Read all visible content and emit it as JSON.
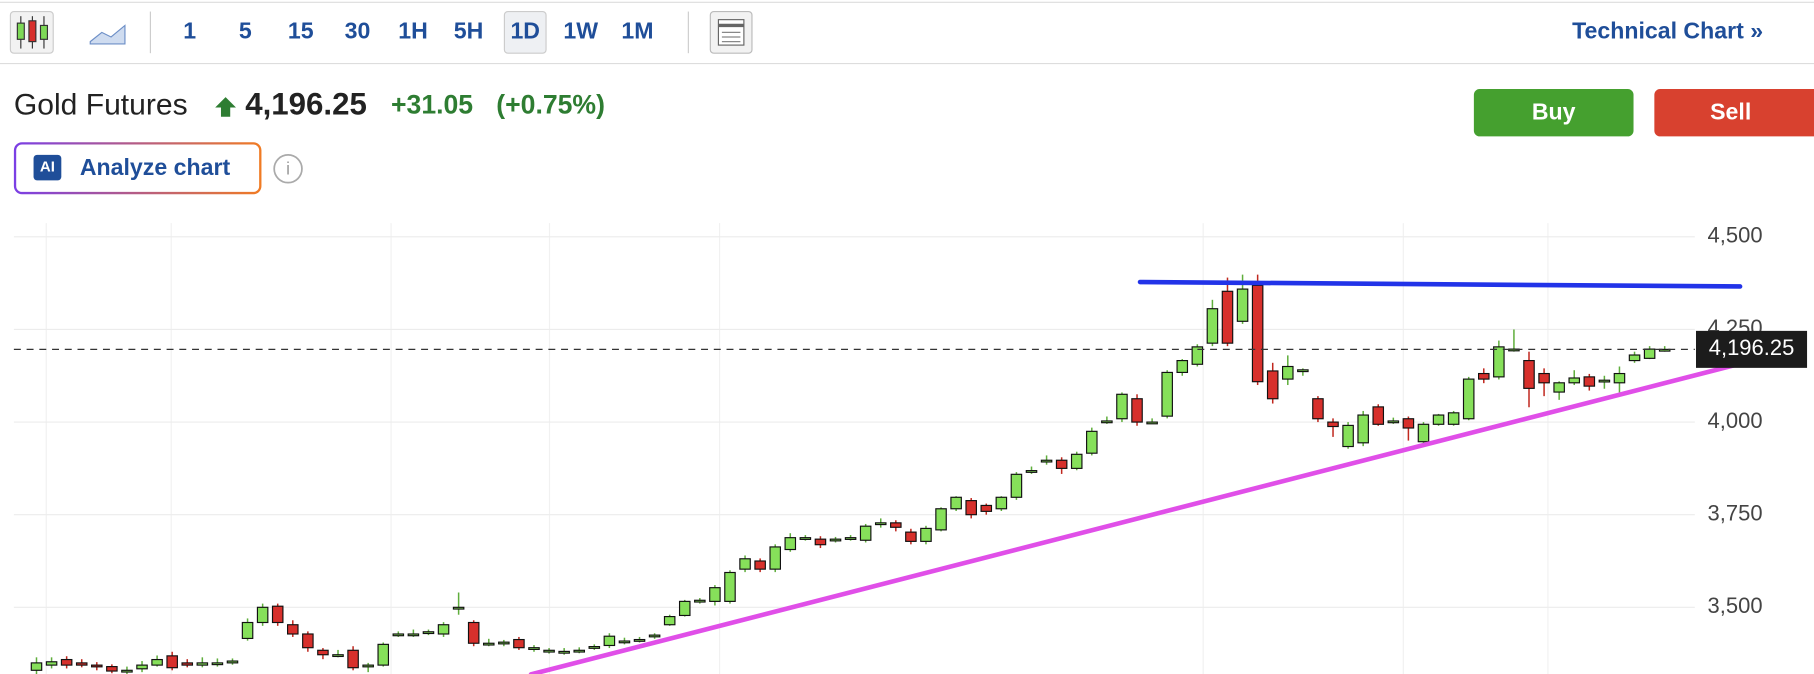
{
  "toolbar": {
    "intervals": [
      "1",
      "5",
      "15",
      "30",
      "1H",
      "5H",
      "1D",
      "1W",
      "1M"
    ],
    "selected_interval": "1D",
    "link": "Technical Chart »"
  },
  "header": {
    "name": "Gold Futures",
    "price": "4,196.25",
    "change": "+31.05",
    "change_percent": "(+0.75%)",
    "buy": "Buy",
    "sell": "Sell",
    "analyze": "Analyze chart",
    "ai_badge": "AI",
    "info": "i"
  },
  "chart_data": {
    "type": "candlestick",
    "up_color": "#86e05a",
    "down_color": "#d7302c",
    "open": [
      3330,
      3344,
      3359,
      3350,
      3344,
      3340,
      3328,
      3334,
      3344,
      3369,
      3350,
      3344,
      3350,
      3350,
      3416,
      3459,
      3503,
      3453,
      3428,
      3384,
      3372,
      3384,
      3344,
      3344,
      3428,
      3428,
      3434,
      3428,
      3500,
      3459,
      3403,
      3403,
      3413,
      3391,
      3384,
      3381,
      3384,
      3394,
      3397,
      3409,
      3413,
      3422,
      3453,
      3478,
      3516,
      3516,
      3516,
      3603,
      3625,
      3603,
      3656,
      3688,
      3684,
      3684,
      3688,
      3681,
      3728,
      3728,
      3703,
      3678,
      3709,
      3766,
      3788,
      3775,
      3766,
      3797,
      3869,
      3897,
      3897,
      3875,
      3916,
      4003,
      4009,
      4063,
      4000,
      4016,
      4134,
      4156,
      4213,
      4353,
      4272,
      4369,
      4138,
      4116,
      4141,
      4063,
      4000,
      3934,
      3944,
      4041,
      4003,
      4009,
      3947,
      3994,
      3994,
      4009,
      4131,
      4122,
      4197,
      4166,
      4131,
      4081,
      4106,
      4122,
      4113,
      4106,
      4166,
      4172,
      4196.25
    ],
    "high": [
      3365,
      3365,
      3368,
      3360,
      3352,
      3346,
      3340,
      3355,
      3370,
      3380,
      3360,
      3365,
      3362,
      3362,
      3470,
      3510,
      3510,
      3465,
      3435,
      3390,
      3385,
      3395,
      3350,
      3405,
      3435,
      3440,
      3440,
      3460,
      3540,
      3465,
      3415,
      3412,
      3420,
      3398,
      3390,
      3390,
      3392,
      3400,
      3430,
      3418,
      3420,
      3430,
      3480,
      3520,
      3525,
      3560,
      3600,
      3640,
      3632,
      3670,
      3700,
      3695,
      3692,
      3690,
      3695,
      3725,
      3740,
      3735,
      3712,
      3720,
      3770,
      3800,
      3795,
      3780,
      3800,
      3865,
      3880,
      3910,
      3905,
      3920,
      3985,
      4015,
      4080,
      4075,
      4010,
      4140,
      4170,
      4210,
      4330,
      4390,
      4398,
      4398,
      4160,
      4180,
      4145,
      4070,
      4010,
      4000,
      4030,
      4048,
      4012,
      4015,
      4000,
      4022,
      4030,
      4122,
      4145,
      4220,
      4250,
      4190,
      4145,
      4110,
      4140,
      4130,
      4125,
      4150,
      4190,
      4205,
      4205
    ],
    "low": [
      3320,
      3335,
      3335,
      3338,
      3330,
      3322,
      3320,
      3325,
      3340,
      3330,
      3338,
      3338,
      3340,
      3345,
      3410,
      3450,
      3450,
      3420,
      3380,
      3360,
      3365,
      3330,
      3325,
      3340,
      3420,
      3420,
      3425,
      3420,
      3480,
      3395,
      3395,
      3395,
      3385,
      3380,
      3375,
      3372,
      3376,
      3385,
      3390,
      3400,
      3405,
      3415,
      3450,
      3475,
      3510,
      3505,
      3510,
      3595,
      3595,
      3595,
      3650,
      3680,
      3660,
      3675,
      3680,
      3675,
      3715,
      3705,
      3670,
      3670,
      3705,
      3760,
      3740,
      3750,
      3760,
      3790,
      3860,
      3885,
      3860,
      3870,
      3910,
      3995,
      4000,
      3990,
      3995,
      4010,
      4125,
      4150,
      4205,
      4205,
      4265,
      4100,
      4050,
      4100,
      4125,
      4000,
      3960,
      3928,
      3935,
      3990,
      3995,
      3950,
      3940,
      3990,
      3990,
      4005,
      4105,
      4115,
      4190,
      4040,
      4070,
      4060,
      4100,
      4085,
      4090,
      4080,
      4160,
      4170,
      4190
    ],
    "close": [
      3350,
      3353,
      3344,
      3344,
      3340,
      3328,
      3330,
      3344,
      3359,
      3337,
      3344,
      3350,
      3350,
      3355,
      3459,
      3500,
      3459,
      3428,
      3391,
      3372,
      3372,
      3337,
      3344,
      3400,
      3428,
      3428,
      3434,
      3453,
      3500,
      3403,
      3403,
      3406,
      3391,
      3391,
      3384,
      3381,
      3384,
      3394,
      3422,
      3409,
      3413,
      3425,
      3475,
      3516,
      3519,
      3553,
      3594,
      3631,
      3603,
      3663,
      3688,
      3688,
      3669,
      3684,
      3688,
      3719,
      3728,
      3716,
      3678,
      3713,
      3766,
      3797,
      3750,
      3759,
      3797,
      3859,
      3869,
      3897,
      3875,
      3913,
      3975,
      4003,
      4075,
      4000,
      4000,
      4134,
      4166,
      4203,
      4306,
      4213,
      4359,
      4109,
      4063,
      4150,
      4141,
      4009,
      3988,
      3991,
      4019,
      3994,
      4003,
      3984,
      3994,
      4019,
      4025,
      4116,
      4116,
      4203,
      4197,
      4091,
      4106,
      4106,
      4119,
      4097,
      4113,
      4131,
      4181,
      4197,
      4196.25
    ],
    "xlim": [
      -1.5,
      110
    ],
    "ylim": [
      3320,
      4537
    ],
    "yticks": [
      {
        "value": 3500,
        "label": "3,500"
      },
      {
        "value": 3750,
        "label": "3,750"
      },
      {
        "value": 4000,
        "label": "4,000"
      },
      {
        "value": 4250,
        "label": "4,250"
      },
      {
        "value": 4500,
        "label": "4,500"
      }
    ],
    "grid": true,
    "last_price": {
      "value": 4196.25,
      "label": "4,196.25"
    },
    "trendlines": [
      {
        "color": "#2233e8",
        "x": [
          73.2,
          113
        ],
        "y": [
          4378,
          4366
        ]
      },
      {
        "color": "#e04fe8",
        "x": [
          32.8,
          114.1
        ],
        "y": [
          3319,
          4169
        ]
      }
    ]
  }
}
